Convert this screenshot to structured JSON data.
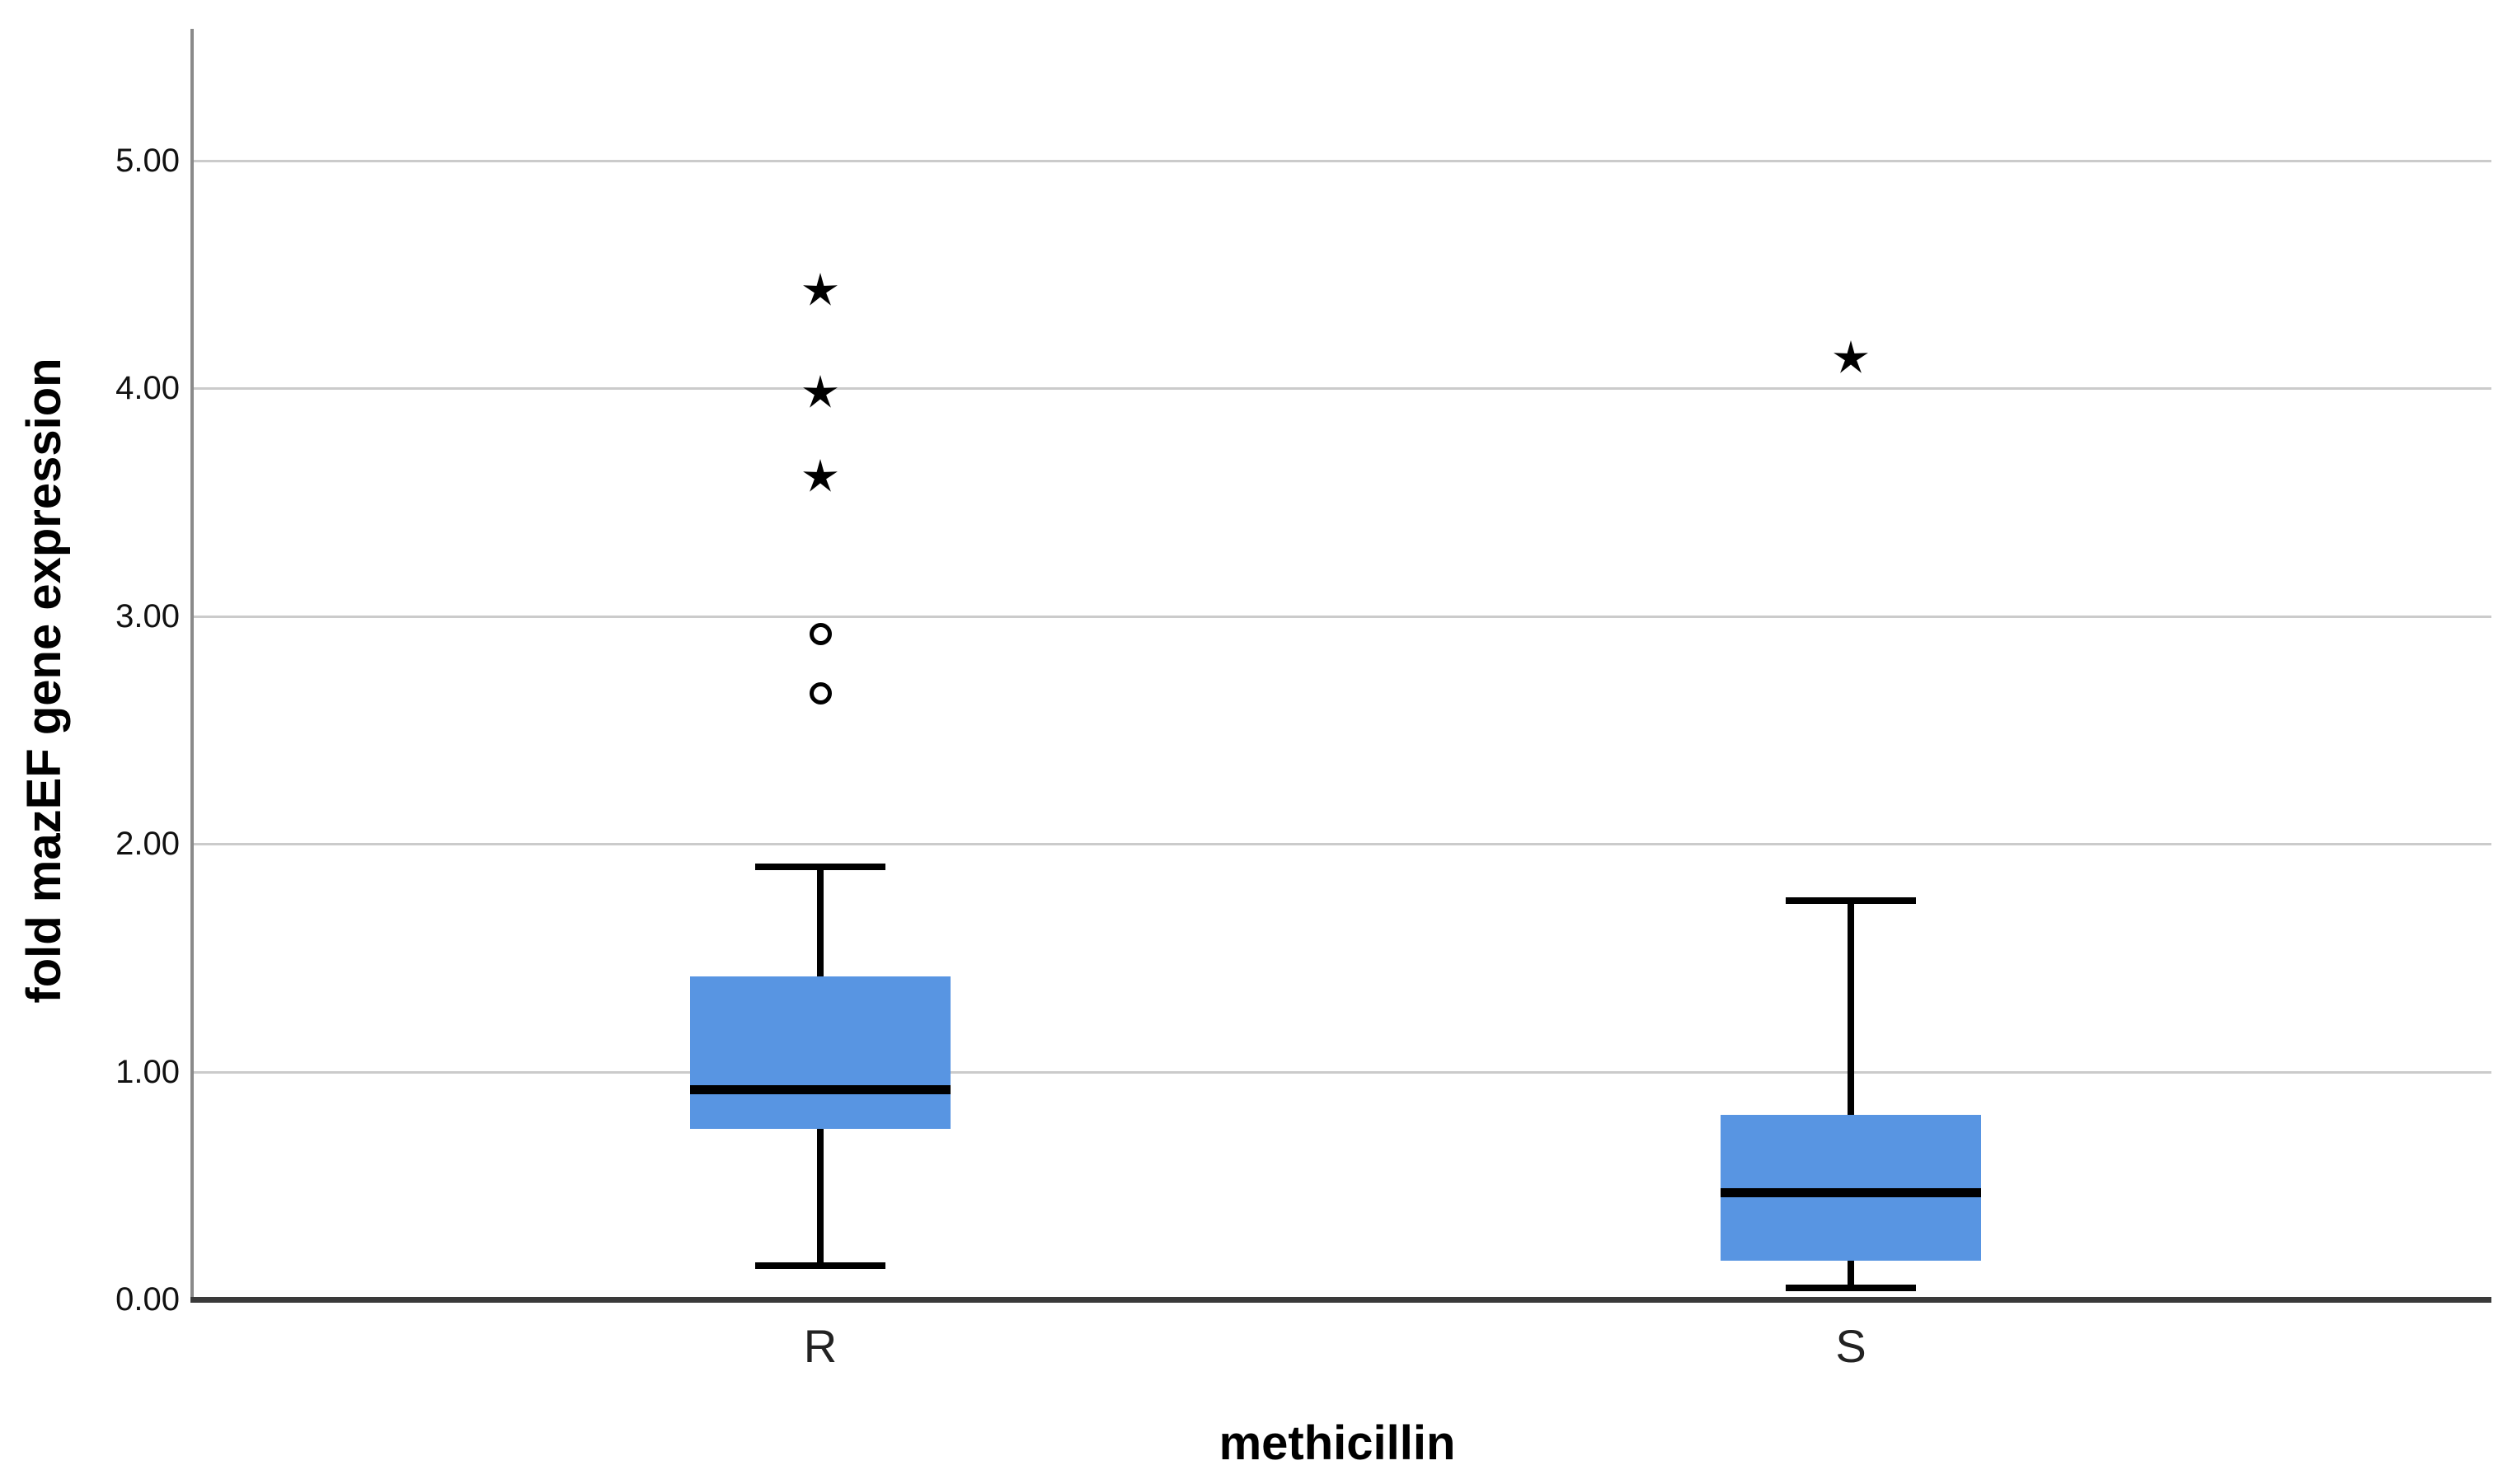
{
  "chart_data": {
    "type": "box",
    "title": "",
    "xlabel": "methicillin",
    "ylabel": "fold mazEF gene expression",
    "categories": [
      "R",
      "S"
    ],
    "yticks": [
      "0.00",
      "1.00",
      "2.00",
      "3.00",
      "4.00",
      "5.00"
    ],
    "ylim": [
      0,
      5.58
    ],
    "grid": "horizontal",
    "series": [
      {
        "category": "R",
        "whisker_low": 0.15,
        "q1": 0.75,
        "median": 0.92,
        "q3": 1.42,
        "whisker_high": 1.9,
        "outliers": [
          2.66,
          2.92
        ],
        "extremes": [
          3.61,
          3.98,
          4.43
        ]
      },
      {
        "category": "S",
        "whisker_low": 0.05,
        "q1": 0.17,
        "median": 0.47,
        "q3": 0.81,
        "whisker_high": 1.75,
        "outliers": [],
        "extremes": [
          4.13
        ]
      }
    ],
    "colors": {
      "box_fill": "#5895e2",
      "median_line": "#000000",
      "whisker": "#000000",
      "outlier_marker": "#000000",
      "gridline": "#cbcbcb",
      "y_axis_line": "#8a8a8a",
      "baseline": "#3a3a3a",
      "tick_text": "#111111",
      "title_text": "#000000"
    }
  }
}
